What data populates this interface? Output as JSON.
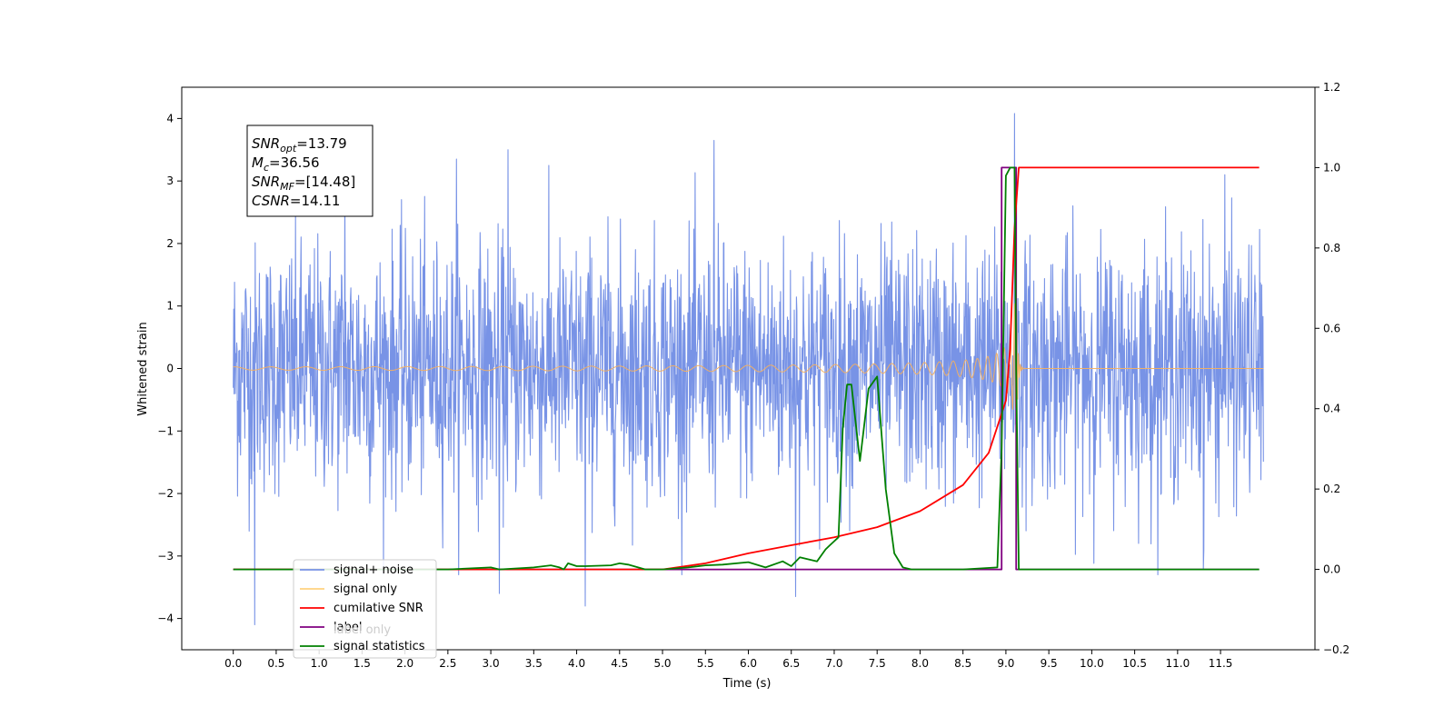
{
  "chart_data": {
    "type": "line",
    "title": "",
    "xlabel": "Time (s)",
    "ylabel": "Whitened strain",
    "y2label": "",
    "xlim": [
      -0.6,
      12.6
    ],
    "ylim": [
      -4.5,
      4.5
    ],
    "y2lim": [
      -0.2,
      1.2
    ],
    "xticks": [
      "0.0",
      "0.5",
      "1.0",
      "1.5",
      "2.0",
      "2.5",
      "3.0",
      "3.5",
      "4.0",
      "4.5",
      "5.0",
      "5.5",
      "6.0",
      "6.5",
      "7.0",
      "7.5",
      "8.0",
      "8.5",
      "9.0",
      "9.5",
      "10.0",
      "10.5",
      "11.0",
      "11.5"
    ],
    "yticks": [
      "4",
      "3",
      "2",
      "1",
      "0",
      "−1",
      "−2",
      "−3",
      "−4"
    ],
    "y2ticks": [
      "1.2",
      "1.0",
      "0.8",
      "0.6",
      "0.4",
      "0.2",
      "0.0",
      "−0.2"
    ],
    "grid": false,
    "legend_position": "lower-left",
    "annotation": {
      "lines": [
        {
          "sym": "SNR",
          "sub": "opt",
          "value": "=13.79"
        },
        {
          "sym": "M",
          "sub": "c",
          "value": "=36.56"
        },
        {
          "sym": "SNR",
          "sub": "MF",
          "value": "=[14.48]"
        },
        {
          "sym": "CSNR",
          "sub": "",
          "value": "=14.11"
        }
      ]
    },
    "series": [
      {
        "name": "signal+ noise",
        "axis": "left",
        "color": "#7893e6",
        "description_values": {
          "x_range": [
            0.0,
            12.0
          ],
          "approx_amplitude": 1.6,
          "max": 4.08,
          "min": -4.1
        },
        "peaks": [
          [
            0.25,
            -4.1
          ],
          [
            1.3,
            3.1
          ],
          [
            2.6,
            3.35
          ],
          [
            3.1,
            -3.6
          ],
          [
            3.2,
            3.5
          ],
          [
            4.1,
            -3.8
          ],
          [
            5.6,
            3.65
          ],
          [
            6.55,
            -3.65
          ],
          [
            9.1,
            4.08
          ],
          [
            9.1,
            -3.95
          ],
          [
            11.3,
            -3.2
          ],
          [
            11.55,
            3.1
          ]
        ]
      },
      {
        "name": "signal only",
        "axis": "left",
        "color": "#f4b060",
        "chirp": {
          "x_start": 0.0,
          "x_end": 12.0,
          "merger": 9.12,
          "max_amplitude": 1.3
        }
      },
      {
        "name": "cumilative SNR",
        "axis": "right",
        "color": "#ff0000",
        "x": [
          0.0,
          5.0,
          5.5,
          6.0,
          6.5,
          7.0,
          7.5,
          8.0,
          8.5,
          8.8,
          9.0,
          9.05,
          9.1,
          9.15,
          11.95
        ],
        "values": [
          0.0,
          0.0,
          0.015,
          0.04,
          0.06,
          0.08,
          0.105,
          0.145,
          0.21,
          0.29,
          0.42,
          0.55,
          0.85,
          1.0,
          1.0
        ]
      },
      {
        "name": "label",
        "axis": "right",
        "color": "#800080",
        "x": [
          0.0,
          8.95,
          8.95,
          9.12,
          9.12,
          11.95
        ],
        "values": [
          0.0,
          0.0,
          1.0,
          1.0,
          0.0,
          0.0
        ]
      },
      {
        "name": "label only",
        "axis": "right",
        "color": "#ffffff",
        "x": [],
        "values": []
      },
      {
        "name": "signal statistics",
        "axis": "right",
        "color": "#008000",
        "x": [
          0.0,
          2.0,
          2.5,
          3.0,
          3.1,
          3.5,
          3.7,
          3.8,
          3.85,
          3.9,
          4.0,
          4.1,
          4.4,
          4.5,
          4.6,
          4.8,
          5.0,
          5.3,
          5.5,
          5.7,
          6.0,
          6.2,
          6.4,
          6.5,
          6.6,
          6.7,
          6.8,
          6.9,
          6.95,
          7.05,
          7.1,
          7.15,
          7.2,
          7.3,
          7.4,
          7.5,
          7.6,
          7.7,
          7.8,
          7.9,
          8.5,
          8.9,
          8.95,
          9.0,
          9.05,
          9.1,
          9.12,
          9.15,
          11.95
        ],
        "values": [
          0.0,
          0.0,
          0.0,
          0.005,
          0.0,
          0.005,
          0.01,
          0.005,
          0.0,
          0.015,
          0.008,
          0.008,
          0.01,
          0.015,
          0.012,
          0.0,
          0.0,
          0.005,
          0.01,
          0.012,
          0.018,
          0.005,
          0.02,
          0.008,
          0.03,
          0.025,
          0.02,
          0.05,
          0.06,
          0.08,
          0.35,
          0.46,
          0.46,
          0.27,
          0.45,
          0.48,
          0.2,
          0.04,
          0.005,
          0.0,
          0.0,
          0.005,
          0.3,
          0.98,
          1.0,
          1.0,
          0.5,
          0.0,
          0.0
        ]
      }
    ]
  }
}
